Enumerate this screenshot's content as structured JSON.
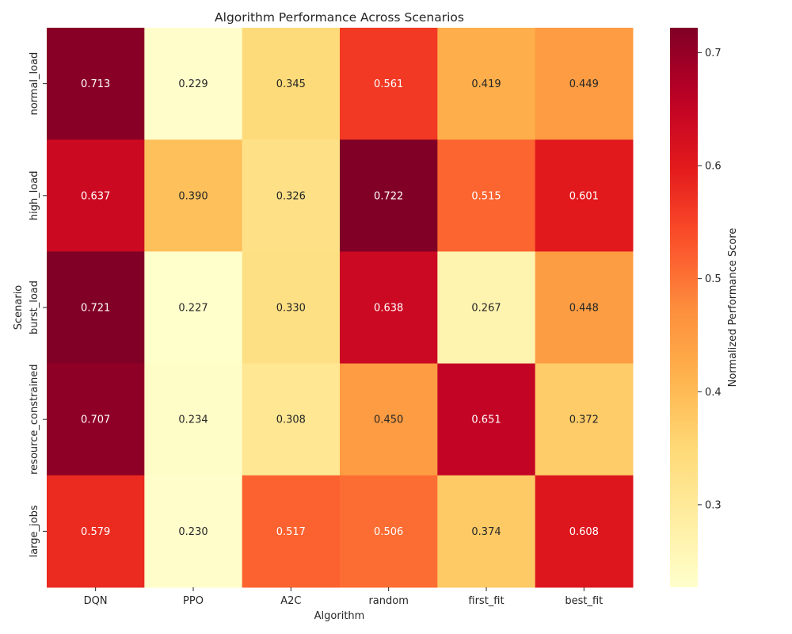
{
  "chart_data": {
    "type": "heatmap",
    "title": "Algorithm Performance Across Scenarios",
    "xlabel": "Algorithm",
    "ylabel": "Scenario",
    "x_categories": [
      "DQN",
      "PPO",
      "A2C",
      "random",
      "first_fit",
      "best_fit"
    ],
    "y_categories": [
      "normal_load",
      "high_load",
      "burst_load",
      "resource_constrained",
      "large_jobs"
    ],
    "values": [
      [
        0.713,
        0.229,
        0.345,
        0.561,
        0.419,
        0.449
      ],
      [
        0.637,
        0.39,
        0.326,
        0.722,
        0.515,
        0.601
      ],
      [
        0.721,
        0.227,
        0.33,
        0.638,
        0.267,
        0.448
      ],
      [
        0.707,
        0.234,
        0.308,
        0.45,
        0.651,
        0.372
      ],
      [
        0.579,
        0.23,
        0.517,
        0.506,
        0.374,
        0.608
      ]
    ],
    "cell_labels": [
      [
        "0.713",
        "0.229",
        "0.345",
        "0.561",
        "0.419",
        "0.449"
      ],
      [
        "0.637",
        "0.390",
        "0.326",
        "0.722",
        "0.515",
        "0.601"
      ],
      [
        "0.721",
        "0.227",
        "0.330",
        "0.638",
        "0.267",
        "0.448"
      ],
      [
        "0.707",
        "0.234",
        "0.308",
        "0.450",
        "0.651",
        "0.372"
      ],
      [
        "0.579",
        "0.230",
        "0.517",
        "0.506",
        "0.374",
        "0.608"
      ]
    ],
    "colormap": "YlOrRd",
    "colorbar": {
      "label": "Normalized Performance Score",
      "range": [
        0.227,
        0.722
      ],
      "ticks": [
        0.3,
        0.4,
        0.5,
        0.6,
        0.7
      ],
      "tick_labels": [
        "0.3",
        "0.4",
        "0.5",
        "0.6",
        "0.7"
      ]
    }
  }
}
